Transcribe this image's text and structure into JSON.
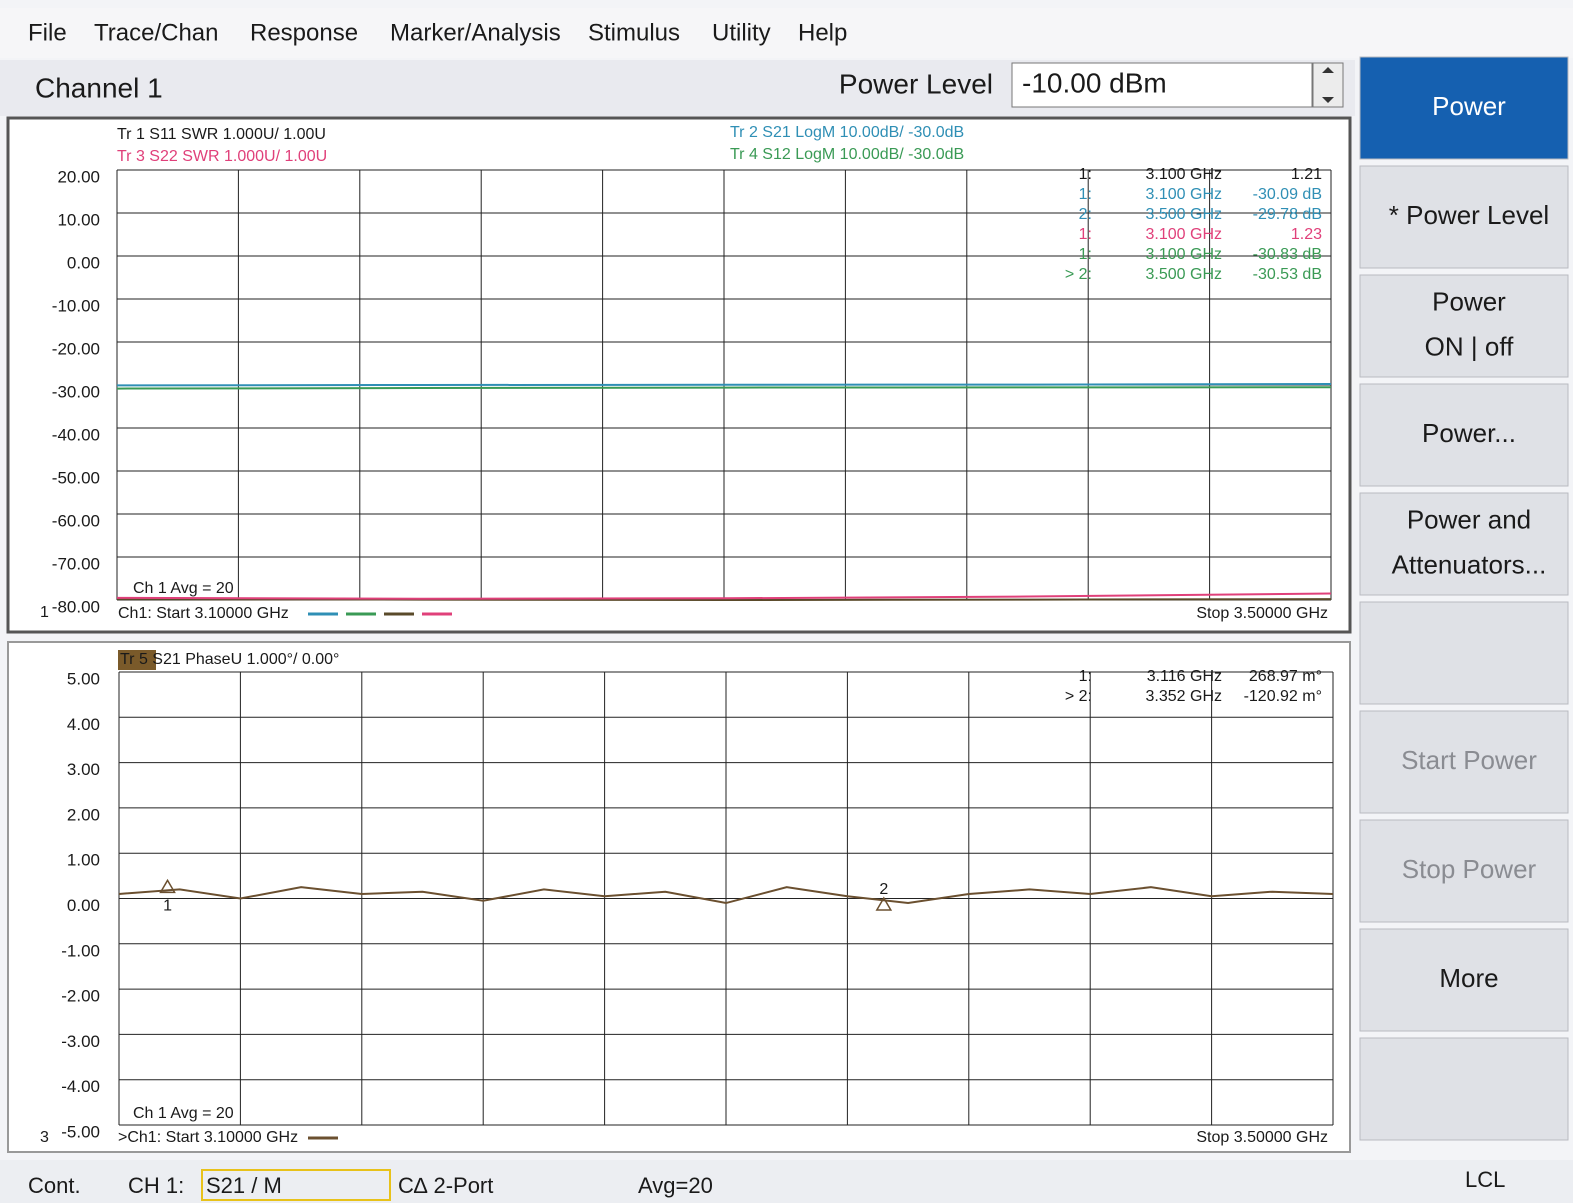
{
  "menu": [
    "File",
    "Trace/Chan",
    "Response",
    "Marker/Analysis",
    "Stimulus",
    "Utility",
    "Help"
  ],
  "toolbar": {
    "channel": "Channel 1",
    "label": "Power Level",
    "value": "-10.00 dBm"
  },
  "softkeys": [
    {
      "lines": [
        "Power"
      ],
      "active": true,
      "enabled": true
    },
    {
      "lines": [
        "* Power Level"
      ],
      "active": false,
      "enabled": true
    },
    {
      "lines": [
        "Power",
        "ON | off"
      ],
      "active": false,
      "enabled": true
    },
    {
      "lines": [
        "Power..."
      ],
      "active": false,
      "enabled": true
    },
    {
      "lines": [
        "Power and",
        "Attenuators..."
      ],
      "active": false,
      "enabled": true
    },
    {
      "lines": [],
      "active": false,
      "enabled": true
    },
    {
      "lines": [
        "Start Power"
      ],
      "active": false,
      "enabled": false
    },
    {
      "lines": [
        "Stop Power"
      ],
      "active": false,
      "enabled": false
    },
    {
      "lines": [
        "More"
      ],
      "active": false,
      "enabled": true
    },
    {
      "lines": [],
      "active": false,
      "enabled": true
    }
  ],
  "windows": [
    {
      "number": "1",
      "headers": [
        {
          "text": "Tr 1  S11 SWR 1.000U/  1.00U",
          "color": "#1a1a1a"
        },
        {
          "text": "Tr 3  S22 SWR 1.000U/  1.00U",
          "color": "#e0407a"
        },
        {
          "text": "Tr 2  S21 LogM 10.00dB/  -30.0dB",
          "color": "#2f8fb5"
        },
        {
          "text": "Tr 4  S12 LogM 10.00dB/  -30.0dB",
          "color": "#3a9a55"
        }
      ],
      "readouts": [
        {
          "prefix": "1:",
          "freq": "3.100 GHz",
          "value": "1.21",
          "color": "#1a1a1a"
        },
        {
          "prefix": "1:",
          "freq": "3.100 GHz",
          "value": "-30.09 dB",
          "color": "#2f8fb5"
        },
        {
          "prefix": "2:",
          "freq": "3.500 GHz",
          "value": "-29.78 dB",
          "color": "#2f8fb5"
        },
        {
          "prefix": "1:",
          "freq": "3.100 GHz",
          "value": "1.23",
          "color": "#e0407a"
        },
        {
          "prefix": "1:",
          "freq": "3.100 GHz",
          "value": "-30.83 dB",
          "color": "#3a9a55"
        },
        {
          "prefix": "> 2:",
          "freq": "3.500 GHz",
          "value": "-30.53 dB",
          "color": "#3a9a55"
        }
      ],
      "ylim": [
        -80,
        20
      ],
      "yticks": [
        {
          "value": 20,
          "label": "20.00"
        },
        {
          "value": 10,
          "label": "10.00"
        },
        {
          "value": 0,
          "label": "0.00"
        },
        {
          "value": -10,
          "label": "-10.00"
        },
        {
          "value": -20,
          "label": "-20.00"
        },
        {
          "value": -30,
          "label": "-30.00"
        },
        {
          "value": -40,
          "label": "-40.00"
        },
        {
          "value": -50,
          "label": "-50.00"
        },
        {
          "value": -60,
          "label": "-60.00"
        },
        {
          "value": -70,
          "label": "-70.00"
        },
        {
          "value": -80,
          "label": "-80.00"
        }
      ],
      "xlim": [
        3.1,
        3.5
      ],
      "avg": "Ch 1 Avg =  20",
      "start": "Ch1: Start  3.10000 GHz",
      "stop": "Stop  3.50000 GHz",
      "markers": [],
      "traces": [
        {
          "color": "#2f8fb5",
          "x": [
            3.1,
            3.2,
            3.3,
            3.4,
            3.5
          ],
          "values": [
            -30.09,
            -30.0,
            -29.95,
            -29.9,
            -29.78
          ]
        },
        {
          "color": "#3a9a55",
          "x": [
            3.1,
            3.2,
            3.3,
            3.4,
            3.5
          ],
          "values": [
            -30.83,
            -30.7,
            -30.6,
            -30.55,
            -30.53
          ]
        },
        {
          "color": "#5a4a2a",
          "x": [
            3.1,
            3.2,
            3.3,
            3.4,
            3.5
          ],
          "values": [
            -79.8,
            -79.9,
            -80,
            -79.9,
            -79.8
          ]
        },
        {
          "color": "#e0407a",
          "x": [
            3.1,
            3.2,
            3.3,
            3.4,
            3.5
          ],
          "values": [
            -79.5,
            -79.7,
            -79.6,
            -79.2,
            -78.5
          ]
        }
      ]
    },
    {
      "number": "3",
      "headers": [
        {
          "text": "Tr 5  S21 PhaseU 1.000°/  0.00°",
          "color": "#1a1a1a"
        }
      ],
      "readouts": [
        {
          "prefix": "1:",
          "freq": "3.116 GHz",
          "value": "268.97 m°",
          "color": "#1a1a1a"
        },
        {
          "prefix": "> 2:",
          "freq": "3.352 GHz",
          "value": "-120.92 m°",
          "color": "#1a1a1a"
        }
      ],
      "ylim": [
        -5,
        5
      ],
      "yticks": [
        {
          "value": 5,
          "label": "5.00"
        },
        {
          "value": 4,
          "label": "4.00"
        },
        {
          "value": 3,
          "label": "3.00"
        },
        {
          "value": 2,
          "label": "2.00"
        },
        {
          "value": 1,
          "label": "1.00"
        },
        {
          "value": 0,
          "label": "0.00"
        },
        {
          "value": -1,
          "label": "-1.00"
        },
        {
          "value": -2,
          "label": "-2.00"
        },
        {
          "value": -3,
          "label": "-3.00"
        },
        {
          "value": -4,
          "label": "-4.00"
        },
        {
          "value": -5,
          "label": "-5.00"
        }
      ],
      "xlim": [
        3.1,
        3.5
      ],
      "avg": "Ch 1 Avg =  20",
      "start": ">Ch1: Start  3.10000 GHz",
      "stop": "Stop  3.50000 GHz",
      "markers": [
        {
          "label": "1",
          "x": 3.116,
          "value": 0.269
        },
        {
          "label": "2",
          "x": 3.352,
          "value": -0.121
        }
      ],
      "traces": [
        {
          "color": "#6b5030",
          "x": [
            3.1,
            3.12,
            3.14,
            3.16,
            3.18,
            3.2,
            3.22,
            3.24,
            3.26,
            3.28,
            3.3,
            3.32,
            3.34,
            3.36,
            3.38,
            3.4,
            3.42,
            3.44,
            3.46,
            3.48,
            3.5
          ],
          "values": [
            0.1,
            0.2,
            0.0,
            0.25,
            0.1,
            0.15,
            -0.05,
            0.2,
            0.05,
            0.15,
            -0.1,
            0.25,
            0.05,
            -0.1,
            0.1,
            0.2,
            0.1,
            0.25,
            0.05,
            0.15,
            0.1
          ]
        }
      ]
    }
  ],
  "status": [
    "Cont.",
    "CH 1:",
    "S21 / M",
    "C∆ 2-Port",
    "Avg=20",
    "LCL"
  ]
}
